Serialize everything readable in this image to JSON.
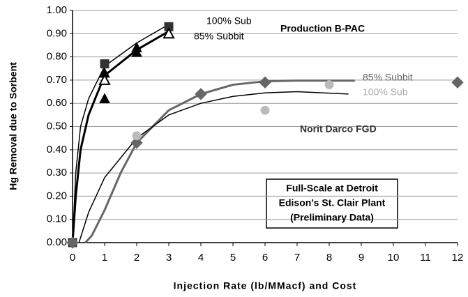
{
  "chart_data": {
    "type": "scatter",
    "title": "Production B-PAC",
    "xlabel": "Injection Rate (lb/MMacf) and Cost",
    "ylabel": "Hg Removal due to Sorbent",
    "xlim": [
      0,
      12
    ],
    "ylim": [
      0,
      1
    ],
    "xticks": [
      0,
      1,
      2,
      3,
      4,
      5,
      6,
      7,
      8,
      9,
      10,
      11,
      12
    ],
    "yticks": [
      {
        "value": 0,
        "label": "0.00"
      },
      {
        "value": 0.1,
        "label": "0.10"
      },
      {
        "value": 0.2,
        "label": "0.20"
      },
      {
        "value": 0.3,
        "label": "0.30"
      },
      {
        "value": 0.4,
        "label": "0.40"
      },
      {
        "value": 0.5,
        "label": "0.50"
      },
      {
        "value": 0.6,
        "label": "0.60"
      },
      {
        "value": 0.7,
        "label": "0.70"
      },
      {
        "value": 0.8,
        "label": "0.80"
      },
      {
        "value": 0.9,
        "label": "0.90"
      },
      {
        "value": 1,
        "label": "1.00"
      }
    ],
    "grid": true,
    "annotations": [
      "100% Sub",
      "85% Subbit",
      "85% Subbit",
      "100% Sub",
      "Norit Darco FGD"
    ],
    "note_lines": [
      "Full-Scale at Detroit",
      "Edison's St. Clair Plant",
      "(Preliminary Data)"
    ],
    "series": [
      {
        "marker": "square",
        "color": "#333333",
        "filled": true,
        "x": [
          0,
          1,
          3
        ],
        "values": [
          0,
          0.77,
          0.93
        ]
      },
      {
        "marker": "triangle",
        "color": "#000000",
        "filled": true,
        "x": [
          1,
          1,
          2,
          2
        ],
        "values": [
          0.62,
          0.73,
          0.82,
          0.84
        ]
      },
      {
        "marker": "triangle",
        "color": "#000000",
        "filled": false,
        "x": [
          1,
          3
        ],
        "values": [
          0.7,
          0.9
        ]
      },
      {
        "marker": "diamond",
        "color": "#666666",
        "filled": true,
        "x": [
          0,
          2,
          4,
          6,
          12
        ],
        "values": [
          0,
          0.43,
          0.64,
          0.69,
          0.69
        ]
      },
      {
        "marker": "circle",
        "color": "#bbbbbb",
        "filled": true,
        "x": [
          2,
          6,
          8
        ],
        "values": [
          0.46,
          0.57,
          0.68
        ]
      }
    ],
    "fits": [
      {
        "color": "#000000",
        "width": 1.5,
        "x": [
          0,
          0.1,
          0.25,
          0.5,
          1,
          2,
          3
        ],
        "values": [
          0,
          0.3,
          0.5,
          0.62,
          0.76,
          0.86,
          0.94
        ]
      },
      {
        "color": "#000000",
        "width": 3,
        "x": [
          0,
          0.1,
          0.25,
          0.5,
          1,
          2,
          3
        ],
        "values": [
          0,
          0.2,
          0.4,
          0.55,
          0.72,
          0.83,
          0.91
        ]
      },
      {
        "color": "#666666",
        "width": 3,
        "x": [
          0.4,
          0.6,
          1,
          1.5,
          2,
          3,
          4,
          5,
          6,
          7,
          8.8
        ],
        "values": [
          0,
          0.03,
          0.14,
          0.3,
          0.43,
          0.57,
          0.64,
          0.68,
          0.695,
          0.698,
          0.698
        ]
      },
      {
        "color": "#000000",
        "width": 1.5,
        "x": [
          0.2,
          0.5,
          1,
          2,
          3,
          4,
          5,
          6,
          7,
          8.6
        ],
        "values": [
          0,
          0.13,
          0.28,
          0.45,
          0.55,
          0.6,
          0.63,
          0.645,
          0.65,
          0.64
        ]
      }
    ]
  }
}
